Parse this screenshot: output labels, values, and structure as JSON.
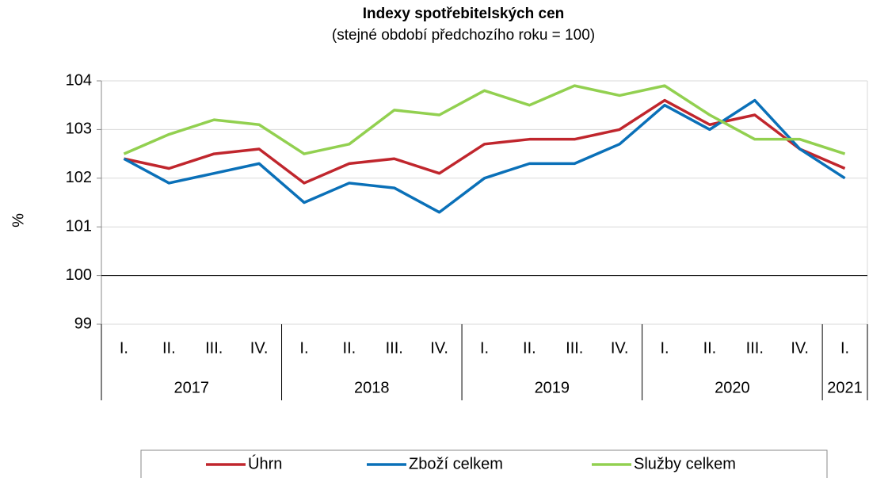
{
  "chart_data": {
    "type": "line",
    "title": "Indexy spotřebitelských cen",
    "subtitle": "(stejné období předchozího roku = 100)",
    "y_label": "%",
    "categories": [
      "I.",
      "II.",
      "III.",
      "IV.",
      "I.",
      "II.",
      "III.",
      "IV.",
      "I.",
      "II.",
      "III.",
      "IV.",
      "I.",
      "II.",
      "III.",
      "IV.",
      "I."
    ],
    "groups": [
      {
        "label": "2017",
        "count": 4
      },
      {
        "label": "2018",
        "count": 4
      },
      {
        "label": "2019",
        "count": 4
      },
      {
        "label": "2020",
        "count": 4
      },
      {
        "label": "2021",
        "count": 1
      }
    ],
    "series": [
      {
        "name": "Úhrn",
        "color": "#c0262d",
        "values": [
          102.4,
          102.2,
          102.5,
          102.6,
          101.9,
          102.3,
          102.4,
          102.1,
          102.7,
          102.8,
          102.8,
          103.0,
          103.6,
          103.1,
          103.3,
          102.6,
          102.2
        ]
      },
      {
        "name": "Zboží celkem",
        "color": "#0a70b8",
        "values": [
          102.4,
          101.9,
          102.1,
          102.3,
          101.5,
          101.9,
          101.8,
          101.3,
          102.0,
          102.3,
          102.3,
          102.7,
          103.5,
          103.0,
          103.6,
          102.6,
          102.0
        ]
      },
      {
        "name": "Služby celkem",
        "color": "#92d050",
        "values": [
          102.5,
          102.9,
          103.2,
          103.1,
          102.5,
          102.7,
          103.4,
          103.3,
          103.8,
          103.5,
          103.9,
          103.7,
          103.9,
          103.3,
          102.8,
          102.8,
          102.5
        ]
      }
    ],
    "ylim": [
      99,
      104
    ],
    "yticks": [
      99,
      100,
      101,
      102,
      103,
      104
    ],
    "x_axis_at": 100,
    "grid": true,
    "legend": "bottom"
  }
}
